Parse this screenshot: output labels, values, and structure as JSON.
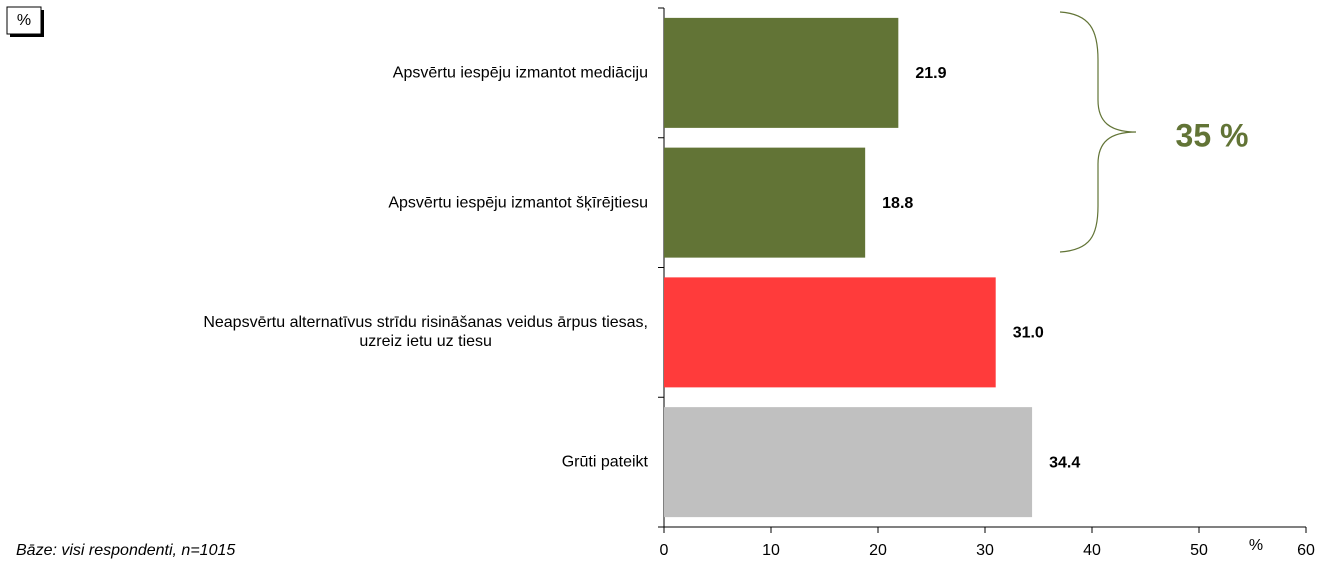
{
  "chart_data": {
    "type": "barh",
    "categories": [
      "Apsvērtu iespēju izmantot mediāciju",
      "Apsvērtu iespēju izmantot šķīrējtiesu",
      "Neapsvērtu alternatīvus strīdu risināšanas veidus ārpus tiesas,\nuzreiz ietu uz tiesu",
      "Grūti pateikt"
    ],
    "values": [
      21.9,
      18.8,
      31.0,
      34.4
    ],
    "value_labels": [
      "21.9",
      "18.8",
      "31.0",
      "34.4"
    ],
    "colors": [
      "#627436",
      "#627436",
      "#ff3b3b",
      "#c0c0c0"
    ],
    "xlim": [
      0,
      60
    ],
    "xticks": [
      0,
      10,
      20,
      30,
      40,
      50,
      60
    ],
    "unit_box": "%",
    "x_unit": "%",
    "group_annotation": "35 %",
    "footnote": "Bāze: visi respondenti, n=1015"
  }
}
